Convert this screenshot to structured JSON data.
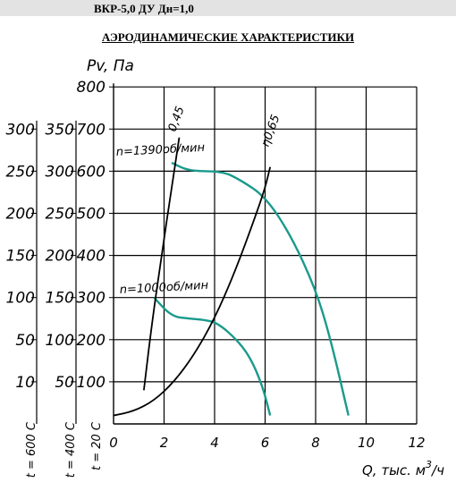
{
  "header": {
    "title": "ВКР-5,0 ДУ Дн=1,0"
  },
  "chart_data": {
    "type": "line",
    "title": "АЭРОДИНАМИЧЕСКИЕ ХАРАКТЕРИСТИКИ",
    "xlabel": "Q, тыс. м³/ч",
    "ylabel": "Pv, Па",
    "xlim": [
      0,
      12
    ],
    "ylim": [
      0,
      800
    ],
    "grid": true,
    "x_ticks": [
      "0",
      "2",
      "4",
      "6",
      "8",
      "10",
      "12"
    ],
    "y_ticks": [
      "100",
      "200",
      "300",
      "400",
      "500",
      "600",
      "700",
      "800"
    ],
    "extra_axes": [
      {
        "label": "t = 400 C",
        "ticks": [
          {
            "label": "50",
            "pv": 100
          },
          {
            "label": "100",
            "pv": 200
          },
          {
            "label": "150",
            "pv": 300
          },
          {
            "label": "200",
            "pv": 400
          },
          {
            "label": "250",
            "pv": 500
          },
          {
            "label": "300",
            "pv": 600
          },
          {
            "label": "350",
            "pv": 700
          }
        ]
      },
      {
        "label": "t = 600 C",
        "ticks": [
          {
            "label": "10",
            "pv": 100
          },
          {
            "label": "50",
            "pv": 200
          },
          {
            "label": "100",
            "pv": 300
          },
          {
            "label": "150",
            "pv": 400
          },
          {
            "label": "200",
            "pv": 500
          },
          {
            "label": "250",
            "pv": 600
          },
          {
            "label": "300",
            "pv": 700
          }
        ]
      }
    ],
    "base_axis_label": "t = 20 C",
    "series": [
      {
        "name": "n=1390об/мин",
        "color": "#1a9a8c",
        "points": [
          [
            2.3,
            620
          ],
          [
            3,
            600
          ],
          [
            4.3,
            600
          ],
          [
            5,
            580
          ],
          [
            6,
            540
          ],
          [
            7,
            450
          ],
          [
            8,
            320
          ],
          [
            8.6,
            200
          ],
          [
            9.3,
            20
          ]
        ]
      },
      {
        "name": "n=1000об/мин",
        "color": "#1a9a8c",
        "points": [
          [
            1.6,
            300
          ],
          [
            2.3,
            255
          ],
          [
            3,
            250
          ],
          [
            3.6,
            247
          ],
          [
            4.1,
            240
          ],
          [
            4.8,
            205
          ],
          [
            5.4,
            160
          ],
          [
            5.9,
            90
          ],
          [
            6.2,
            20
          ]
        ]
      },
      {
        "name": "0,45",
        "color": "#000000",
        "points": [
          [
            1.2,
            80
          ],
          [
            1.5,
            230
          ],
          [
            1.9,
            400
          ],
          [
            2.3,
            560
          ],
          [
            2.6,
            680
          ]
        ]
      },
      {
        "name": "η0,65",
        "color": "#000000",
        "points": [
          [
            0,
            20
          ],
          [
            0.8,
            30
          ],
          [
            1.6,
            55
          ],
          [
            2.4,
            100
          ],
          [
            3.2,
            165
          ],
          [
            4.0,
            250
          ],
          [
            4.8,
            360
          ],
          [
            5.6,
            490
          ],
          [
            6,
            560
          ],
          [
            6.2,
            610
          ]
        ]
      }
    ]
  }
}
